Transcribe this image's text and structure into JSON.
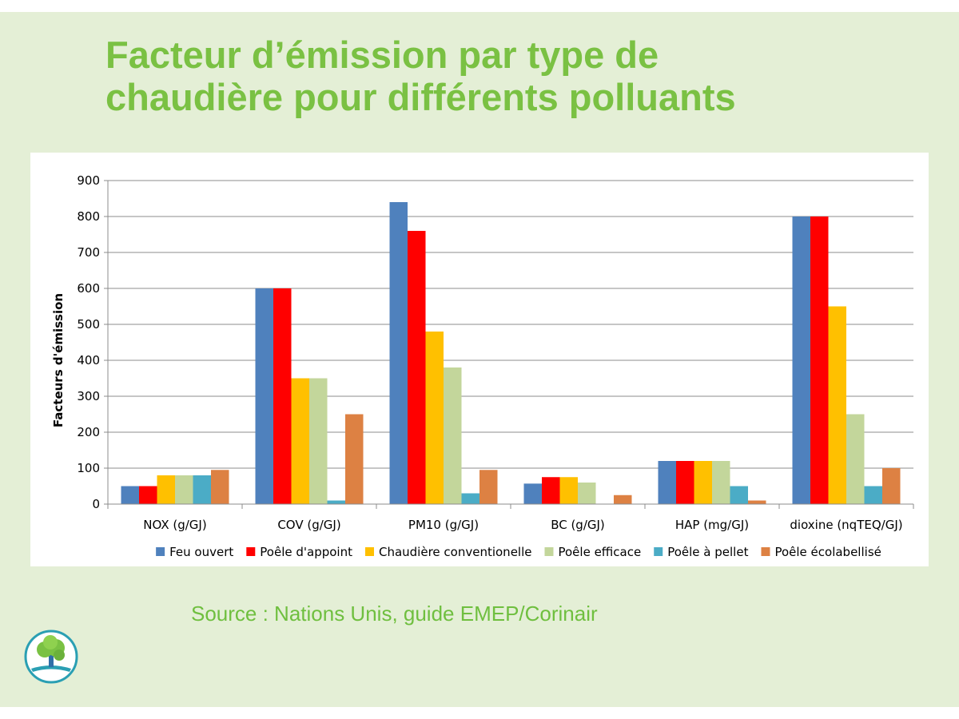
{
  "slide": {
    "title_line1": "Facteur d’émission par type de",
    "title_line2": "chaudière pour différents polluants",
    "source": "Source : Nations Unis, guide EMEP/Corinair",
    "logo_icon": "tree-icon"
  },
  "chart_data": {
    "type": "bar",
    "title": "",
    "xlabel": "",
    "ylabel": "Facteurs d'émission",
    "ylim": [
      0,
      900
    ],
    "yticks": [
      0,
      100,
      200,
      300,
      400,
      500,
      600,
      700,
      800,
      900
    ],
    "grid": true,
    "legend": "bottom",
    "categories": [
      "NOX (g/GJ)",
      "COV (g/GJ)",
      "PM10 (g/GJ)",
      "BC (g/GJ)",
      "HAP (mg/GJ)",
      "dioxine (nqTEQ/GJ)"
    ],
    "series": [
      {
        "name": "Feu ouvert",
        "color": "#4f81bd",
        "values": [
          50,
          600,
          840,
          57,
          120,
          800
        ]
      },
      {
        "name": "Poêle d'appoint",
        "color": "#ff0000",
        "values": [
          50,
          600,
          760,
          75,
          120,
          800
        ]
      },
      {
        "name": "Chaudière conventionelle",
        "color": "#ffc000",
        "values": [
          80,
          350,
          480,
          75,
          120,
          550
        ]
      },
      {
        "name": "Poêle efficace",
        "color": "#c3d69b",
        "values": [
          80,
          350,
          380,
          60,
          120,
          250
        ]
      },
      {
        "name": "Poêle à pellet",
        "color": "#4bacc6",
        "values": [
          80,
          10,
          30,
          0,
          50,
          50
        ]
      },
      {
        "name": "Poêle écolabellisé",
        "color": "#dd8143",
        "values": [
          95,
          250,
          95,
          25,
          10,
          100
        ]
      }
    ]
  }
}
